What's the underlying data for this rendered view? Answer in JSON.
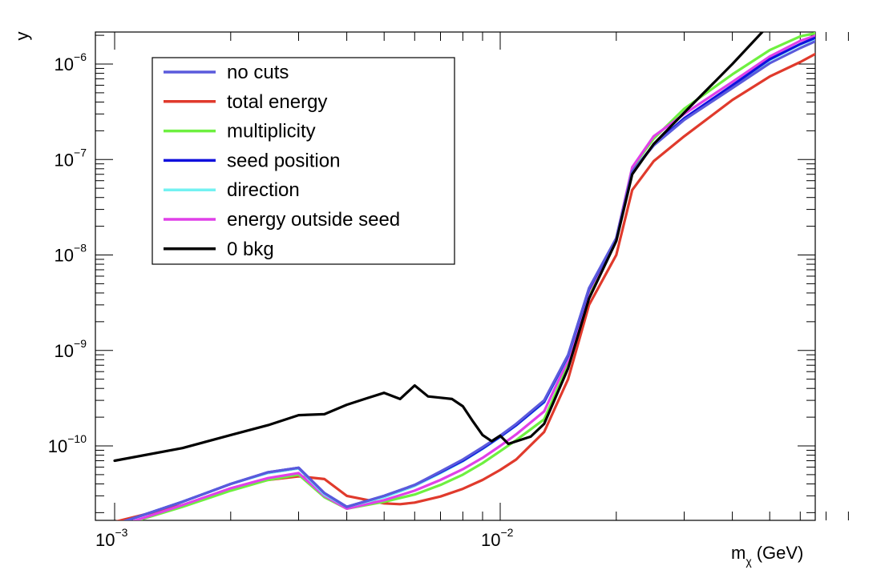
{
  "chart_data": {
    "type": "line",
    "xlabel": "m",
    "xlabel_subscript": "χ",
    "xlabel_unit": "(GeV)",
    "ylabel": "y",
    "xscale": "log",
    "yscale": "log",
    "xlim": [
      0.001,
      0.08
    ],
    "ylim": [
      1.5e-11,
      2.1e-06
    ],
    "x_ticks": [
      {
        "value": 0.001,
        "base": "10",
        "exp": "−3"
      },
      {
        "value": 0.01,
        "base": "10",
        "exp": "−2"
      }
    ],
    "y_ticks": [
      {
        "value": 1e-10,
        "base": "10",
        "exp": "−10"
      },
      {
        "value": 1e-09,
        "base": "10",
        "exp": "−9"
      },
      {
        "value": 1e-08,
        "base": "10",
        "exp": "−8"
      },
      {
        "value": 1e-07,
        "base": "10",
        "exp": "−7"
      },
      {
        "value": 1e-06,
        "base": "10",
        "exp": "−6"
      }
    ],
    "legend_position": "top-left",
    "grid": false,
    "series": [
      {
        "name": "no cuts",
        "color": "#5a5adc",
        "x": [
          0.001,
          0.0015,
          0.002,
          0.0025,
          0.003,
          0.0035,
          0.004,
          0.005,
          0.006,
          0.007,
          0.008,
          0.009,
          0.01,
          0.011,
          0.013,
          0.015,
          0.017,
          0.02,
          0.022,
          0.025,
          0.03,
          0.04,
          0.05,
          0.06,
          0.075
        ],
        "y": [
          1.5e-11,
          2.6e-11,
          4e-11,
          5.3e-11,
          5.9e-11,
          3.2e-11,
          2.3e-11,
          3e-11,
          3.9e-11,
          5.4e-11,
          7.2e-11,
          9.7e-11,
          1.28e-10,
          1.7e-10,
          3e-10,
          9e-10,
          4.5e-09,
          1.5e-08,
          7.5e-08,
          1.4e-07,
          2.6e-07,
          5.6e-07,
          1.02e-06,
          1.47e-06,
          2.2e-06
        ]
      },
      {
        "name": "total energy",
        "color": "#e03a2c",
        "x": [
          0.001,
          0.0015,
          0.002,
          0.0025,
          0.003,
          0.0035,
          0.004,
          0.005,
          0.0055,
          0.006,
          0.007,
          0.008,
          0.009,
          0.01,
          0.011,
          0.013,
          0.015,
          0.017,
          0.02,
          0.022,
          0.025,
          0.03,
          0.04,
          0.05,
          0.06,
          0.078
        ],
        "y": [
          1.6e-11,
          2.4e-11,
          3.5e-11,
          4.4e-11,
          4.8e-11,
          4.5e-11,
          3e-11,
          2.5e-11,
          2.45e-11,
          2.55e-11,
          2.95e-11,
          3.55e-11,
          4.4e-11,
          5.6e-11,
          7.2e-11,
          1.4e-10,
          5e-10,
          3e-09,
          1e-08,
          4.8e-08,
          9.6e-08,
          1.75e-07,
          4.2e-07,
          7.4e-07,
          1.05e-06,
          1.85e-06
        ]
      },
      {
        "name": "multiplicity",
        "color": "#6ef040",
        "x": [
          0.001,
          0.0015,
          0.002,
          0.0025,
          0.003,
          0.0035,
          0.004,
          0.005,
          0.006,
          0.007,
          0.008,
          0.009,
          0.01,
          0.011,
          0.013,
          0.015,
          0.017,
          0.02,
          0.022,
          0.025,
          0.03,
          0.04,
          0.05,
          0.06,
          0.069
        ],
        "y": [
          1.4e-11,
          2.3e-11,
          3.4e-11,
          4.4e-11,
          5e-11,
          2.9e-11,
          2.2e-11,
          2.6e-11,
          3.1e-11,
          3.9e-11,
          5e-11,
          6.6e-11,
          8.8e-11,
          1.15e-10,
          1.9e-10,
          7e-10,
          4e-09,
          1.5e-08,
          8.2e-08,
          1.65e-07,
          3.4e-07,
          7.8e-07,
          1.4e-06,
          1.95e-06,
          2.2e-06
        ]
      },
      {
        "name": "seed position",
        "color": "#1010dd",
        "x": [
          0.001,
          0.0015,
          0.002,
          0.0025,
          0.003,
          0.0035,
          0.004,
          0.005,
          0.006,
          0.007,
          0.008,
          0.009,
          0.01,
          0.011,
          0.013,
          0.015,
          0.017,
          0.02,
          0.022,
          0.025,
          0.03,
          0.04,
          0.05,
          0.06,
          0.072
        ],
        "y": [
          1.5e-11,
          2.6e-11,
          4e-11,
          5.3e-11,
          5.9e-11,
          3.2e-11,
          2.3e-11,
          3e-11,
          3.9e-11,
          5.3e-11,
          7e-11,
          9.4e-11,
          1.25e-10,
          1.65e-10,
          2.9e-10,
          8.8e-10,
          4.4e-09,
          1.48e-08,
          7.5e-08,
          1.42e-07,
          2.7e-07,
          6e-07,
          1.12e-06,
          1.62e-06,
          2.2e-06
        ]
      },
      {
        "name": "direction",
        "color": "#73f2f2",
        "x": [
          0.001,
          0.0015,
          0.002,
          0.0025,
          0.003,
          0.0035,
          0.004,
          0.005,
          0.006,
          0.007,
          0.008,
          0.009,
          0.01,
          0.011,
          0.013,
          0.015,
          0.017,
          0.02,
          0.022,
          0.025,
          0.03,
          0.04,
          0.05,
          0.06,
          0.073
        ],
        "y": [
          1.5e-11,
          2.6e-11,
          4e-11,
          5.2e-11,
          5.8e-11,
          3.1e-11,
          2.3e-11,
          2.9e-11,
          3.8e-11,
          5.2e-11,
          6.9e-11,
          9.3e-11,
          1.24e-10,
          1.64e-10,
          2.85e-10,
          8.7e-10,
          4.4e-09,
          1.48e-08,
          7.5e-08,
          1.42e-07,
          2.7e-07,
          5.9e-07,
          1.1e-06,
          1.6e-06,
          2.2e-06
        ]
      },
      {
        "name": "energy outside seed",
        "color": "#e040e8",
        "x": [
          0.001,
          0.0015,
          0.002,
          0.0025,
          0.003,
          0.0035,
          0.004,
          0.005,
          0.006,
          0.007,
          0.008,
          0.009,
          0.01,
          0.011,
          0.013,
          0.015,
          0.017,
          0.02,
          0.022,
          0.025,
          0.03,
          0.04,
          0.05,
          0.06,
          0.071
        ],
        "y": [
          1.4e-11,
          2.4e-11,
          3.6e-11,
          4.6e-11,
          5.2e-11,
          3e-11,
          2.2e-11,
          2.7e-11,
          3.4e-11,
          4.4e-11,
          5.7e-11,
          7.5e-11,
          1e-10,
          1.32e-10,
          2.3e-10,
          8e-10,
          4.2e-09,
          1.5e-08,
          8.3e-08,
          1.75e-07,
          3e-07,
          6.5e-07,
          1.2e-06,
          1.75e-06,
          2.2e-06
        ]
      },
      {
        "name": "0 bkg",
        "color": "#000000",
        "x": [
          0.001,
          0.0015,
          0.002,
          0.0025,
          0.003,
          0.0035,
          0.004,
          0.0045,
          0.005,
          0.0055,
          0.006,
          0.0065,
          0.007,
          0.0075,
          0.008,
          0.0085,
          0.009,
          0.0095,
          0.01,
          0.0105,
          0.012,
          0.013,
          0.015,
          0.017,
          0.02,
          0.022,
          0.025,
          0.03,
          0.04,
          0.048
        ],
        "y": [
          7e-11,
          9.5e-11,
          1.3e-10,
          1.65e-10,
          2.1e-10,
          2.15e-10,
          2.7e-10,
          3.15e-10,
          3.6e-10,
          3.1e-10,
          4.3e-10,
          3.3e-10,
          3.2e-10,
          3.1e-10,
          2.6e-10,
          1.8e-10,
          1.3e-10,
          1.12e-10,
          1.28e-10,
          1.05e-10,
          1.25e-10,
          1.7e-10,
          6.5e-10,
          3.5e-09,
          1.4e-08,
          7e-08,
          1.45e-07,
          3.1e-07,
          1e-06,
          2.2e-06
        ]
      }
    ]
  }
}
